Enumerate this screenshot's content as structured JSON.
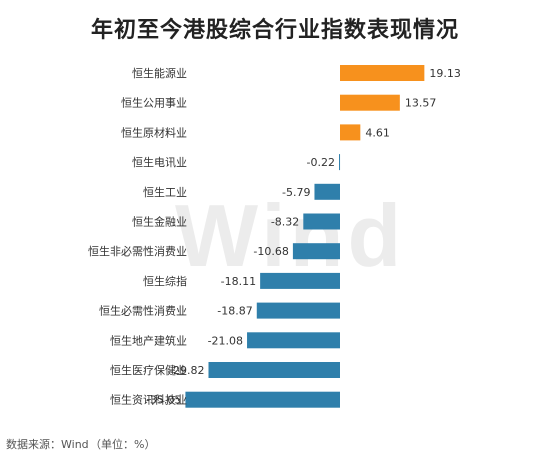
{
  "title": "年初至今港股综合行业指数表现情况",
  "source": "数据来源：Wind",
  "unit_note": "（单位：%）",
  "watermark": "Wind",
  "colors": {
    "positive": "#f7911d",
    "negative": "#2f7fab",
    "text": "#333333"
  },
  "chart_data": {
    "type": "bar",
    "orientation": "horizontal",
    "title": "年初至今港股综合行业指数表现情况",
    "categories": [
      "恒生能源业",
      "恒生公用事业",
      "恒生原材料业",
      "恒生电讯业",
      "恒生工业",
      "恒生金融业",
      "恒生非必需性消费业",
      "恒生综指",
      "恒生必需性消费业",
      "恒生地产建筑业",
      "恒生医疗保健业",
      "恒生资讯科技业"
    ],
    "values": [
      19.13,
      13.57,
      4.61,
      -0.22,
      -5.79,
      -8.32,
      -10.68,
      -18.11,
      -18.87,
      -21.08,
      -29.82,
      -35.05
    ],
    "data_labels": [
      "19.13",
      "13.57",
      "4.61",
      "-0.22",
      "-5.79",
      "-8.32",
      "-10.68",
      "-18.11",
      "-18.87",
      "-21.08",
      "-29.82",
      "-35.05"
    ],
    "xlabel": "",
    "ylabel": "",
    "grid": false,
    "legend": "none"
  }
}
